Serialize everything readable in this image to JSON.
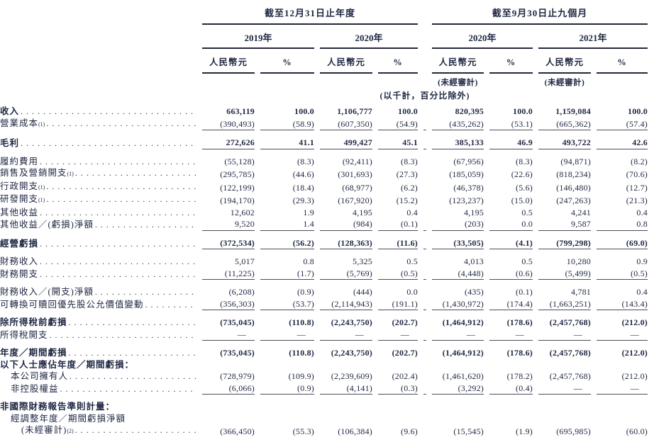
{
  "header": {
    "group_annual": "截至12月31日止年度",
    "group_ninemonth": "截至9月30日止九個月",
    "years": [
      "2019年",
      "2020年",
      "2020年",
      "2021年"
    ],
    "currency_label": "人民幣元",
    "percent_label": "%",
    "unaudited_label": "(未經審計)",
    "units_note": "(以千計，百分比除外)"
  },
  "table": {
    "rows": [
      {
        "label": "收入",
        "sup": "",
        "dots": true,
        "bold": true,
        "indent": 0,
        "line_below": false,
        "values": [
          "663,119",
          "100.0",
          "1,106,777",
          "100.0",
          "820,395",
          "100.0",
          "1,159,084",
          "100.0"
        ]
      },
      {
        "label": "營業成本",
        "sup": "(1)",
        "dots": true,
        "bold": false,
        "indent": 0,
        "line_below": true,
        "values": [
          "(390,493)",
          "(58.9)",
          "(607,350)",
          "(54.9)",
          "(435,262)",
          "(53.1)",
          "(665,362)",
          "(57.4)"
        ]
      },
      {
        "label": "毛利",
        "sup": "",
        "dots": true,
        "bold": true,
        "indent": 0,
        "line_below": true,
        "values": [
          "272,626",
          "41.1",
          "499,427",
          "45.1",
          "385,133",
          "46.9",
          "493,722",
          "42.6"
        ]
      },
      {
        "label": "履約費用",
        "sup": "",
        "dots": true,
        "bold": false,
        "indent": 0,
        "line_below": false,
        "values": [
          "(55,128)",
          "(8.3)",
          "(92,411)",
          "(8.3)",
          "(67,956)",
          "(8.3)",
          "(94,871)",
          "(8.2)"
        ]
      },
      {
        "label": "銷售及營銷開支",
        "sup": "(1)",
        "dots": true,
        "bold": false,
        "indent": 0,
        "line_below": false,
        "values": [
          "(295,785)",
          "(44.6)",
          "(301,693)",
          "(27.3)",
          "(185,059)",
          "(22.6)",
          "(818,234)",
          "(70.6)"
        ]
      },
      {
        "label": "行政開支",
        "sup": "(1)",
        "dots": true,
        "bold": false,
        "indent": 0,
        "line_below": false,
        "values": [
          "(122,199)",
          "(18.4)",
          "(68,977)",
          "(6.2)",
          "(46,378)",
          "(5.6)",
          "(146,480)",
          "(12.7)"
        ]
      },
      {
        "label": "研發開支",
        "sup": "(1)",
        "dots": true,
        "bold": false,
        "indent": 0,
        "line_below": false,
        "values": [
          "(194,170)",
          "(29.3)",
          "(167,920)",
          "(15.2)",
          "(123,237)",
          "(15.0)",
          "(247,263)",
          "(21.3)"
        ]
      },
      {
        "label": "其他收益",
        "sup": "",
        "dots": true,
        "bold": false,
        "indent": 0,
        "line_below": false,
        "values": [
          "12,602",
          "1.9",
          "4,195",
          "0.4",
          "4,195",
          "0.5",
          "4,241",
          "0.4"
        ]
      },
      {
        "label": "其他收益／(虧損)淨額",
        "sup": "",
        "dots": true,
        "bold": false,
        "indent": 0,
        "line_below": true,
        "values": [
          "9,520",
          "1.4",
          "(984)",
          "(0.1)",
          "(203)",
          "0.0",
          "9,587",
          "0.8"
        ]
      },
      {
        "label": "經營虧損",
        "sup": "",
        "dots": true,
        "bold": true,
        "indent": 0,
        "line_below": true,
        "values": [
          "(372,534)",
          "(56.2)",
          "(128,363)",
          "(11.6)",
          "(33,505)",
          "(4.1)",
          "(799,298)",
          "(69.0)"
        ]
      },
      {
        "label": "財務收入",
        "sup": "",
        "dots": true,
        "bold": false,
        "indent": 0,
        "line_below": false,
        "values": [
          "5,017",
          "0.8",
          "5,325",
          "0.5",
          "4,013",
          "0.5",
          "10,280",
          "0.9"
        ]
      },
      {
        "label": "財務開支",
        "sup": "",
        "dots": true,
        "bold": false,
        "indent": 0,
        "line_below": true,
        "values": [
          "(11,225)",
          "(1.7)",
          "(5,769)",
          "(0.5)",
          "(4,448)",
          "(0.6)",
          "(5,499)",
          "(0.5)"
        ]
      },
      {
        "label": "財務收入／(開支)淨額",
        "sup": "",
        "dots": true,
        "bold": false,
        "indent": 0,
        "line_below": false,
        "values": [
          "(6,208)",
          "(0.9)",
          "(444)",
          "0.0",
          "(435)",
          "(0.1)",
          "4,781",
          "0.4"
        ]
      },
      {
        "label": "可轉換可贖回優先股公允價值變動",
        "sup": "",
        "dots": true,
        "bold": false,
        "indent": 0,
        "line_below": true,
        "values": [
          "(356,303)",
          "(53.7)",
          "(2,114,943)",
          "(191.1)",
          "(1,430,972)",
          "(174.4)",
          "(1,663,251)",
          "(143.4)"
        ]
      },
      {
        "label": "除所得稅前虧損",
        "sup": "",
        "dots": true,
        "bold": true,
        "indent": 0,
        "line_below": false,
        "values": [
          "(735,045)",
          "(110.8)",
          "(2,243,750)",
          "(202.7)",
          "(1,464,912)",
          "(178.6)",
          "(2,457,768)",
          "(212.0)"
        ]
      },
      {
        "label": "所得稅開支",
        "sup": "",
        "dots": true,
        "bold": false,
        "indent": 0,
        "line_below": true,
        "values": [
          "—",
          "—",
          "—",
          "—",
          "—",
          "—",
          "—",
          "—"
        ]
      },
      {
        "label": "年度／期間虧損",
        "sup": "",
        "dots": true,
        "bold": true,
        "indent": 0,
        "line_below": false,
        "values": [
          "(735,045)",
          "(110.8)",
          "(2,243,750)",
          "(202.7)",
          "(1,464,912)",
          "(178.6)",
          "(2,457,768)",
          "(212.0)"
        ]
      },
      {
        "label": "以下人士應佔年度／期間虧損：",
        "sup": "",
        "dots": false,
        "bold": true,
        "indent": 0,
        "line_below": false,
        "values": []
      },
      {
        "label": "本公司擁有人",
        "sup": "",
        "dots": true,
        "bold": false,
        "indent": 1,
        "line_below": false,
        "values": [
          "(728,979)",
          "(109.9)",
          "(2,239,609)",
          "(202.4)",
          "(1,461,620)",
          "(178.2)",
          "(2,457,768)",
          "(212.0)"
        ]
      },
      {
        "label": "非控股權益",
        "sup": "",
        "dots": true,
        "bold": false,
        "indent": 1,
        "line_below": true,
        "values": [
          "(6,066)",
          "(0.9)",
          "(4,141)",
          "(0.3)",
          "(3,292)",
          "(0.4)",
          "—",
          "—"
        ]
      },
      {
        "label": "非國際財務報告準則計量：",
        "sup": "",
        "dots": false,
        "bold": true,
        "indent": 0,
        "line_below": false,
        "values": []
      },
      {
        "label": "經調整年度／期間虧損淨額",
        "sup": "",
        "dots": false,
        "bold": false,
        "indent": 1,
        "line_below": false,
        "values": []
      },
      {
        "label": "(未經審計)",
        "sup": "(2)",
        "dots": true,
        "bold": false,
        "indent": 2,
        "line_below": false,
        "values": [
          "(366,450)",
          "(55.3)",
          "(106,384)",
          "(9.6)",
          "(15,545)",
          "(1.9)",
          "(695,985)",
          "(60.0)"
        ]
      }
    ]
  }
}
